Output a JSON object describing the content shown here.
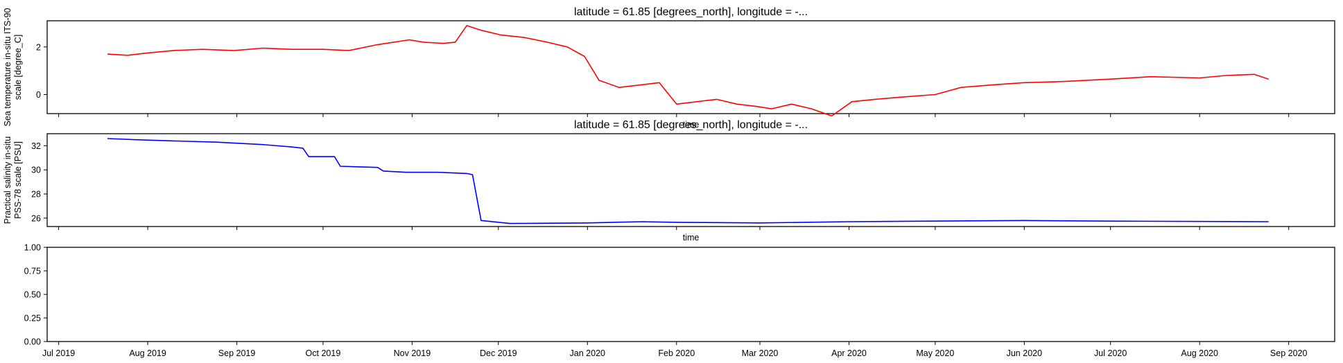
{
  "chart_data": [
    {
      "type": "line",
      "title": "latitude = 61.85 [degrees_north], longitude = -...",
      "ylabel_lines": [
        "Sea temperature in-situ ITS-90",
        "scale [degree_C]"
      ],
      "xlabel": "time",
      "ylim": [
        -0.8,
        3.1
      ],
      "yticks": [
        "0",
        "2"
      ],
      "color": "#ff0000",
      "grid": false,
      "series": [
        {
          "x": [
            "2019-07-18",
            "2019-07-25",
            "2019-08-01",
            "2019-08-10",
            "2019-08-20",
            "2019-08-31",
            "2019-09-10",
            "2019-09-20",
            "2019-10-01",
            "2019-10-10",
            "2019-10-20",
            "2019-10-31",
            "2019-11-05",
            "2019-11-12",
            "2019-11-16",
            "2019-11-20",
            "2019-11-25",
            "2019-12-02",
            "2019-12-10",
            "2019-12-18",
            "2019-12-25",
            "2019-12-31",
            "2020-01-05",
            "2020-01-12",
            "2020-01-19",
            "2020-01-26",
            "2020-02-01",
            "2020-02-08",
            "2020-02-15",
            "2020-02-22",
            "2020-02-29",
            "2020-03-05",
            "2020-03-12",
            "2020-03-19",
            "2020-03-26",
            "2020-04-02",
            "2020-04-10",
            "2020-04-20",
            "2020-05-01",
            "2020-05-10",
            "2020-05-20",
            "2020-06-01",
            "2020-06-15",
            "2020-07-01",
            "2020-07-15",
            "2020-08-01",
            "2020-08-10",
            "2020-08-20",
            "2020-08-25"
          ],
          "values": [
            1.7,
            1.65,
            1.75,
            1.85,
            1.9,
            1.85,
            1.95,
            1.9,
            1.9,
            1.85,
            2.1,
            2.3,
            2.2,
            2.15,
            2.2,
            2.9,
            2.7,
            2.5,
            2.4,
            2.2,
            2.0,
            1.6,
            0.6,
            0.3,
            0.4,
            0.5,
            -0.4,
            -0.3,
            -0.2,
            -0.4,
            -0.5,
            -0.6,
            -0.4,
            -0.6,
            -0.9,
            -0.3,
            -0.2,
            -0.1,
            0.0,
            0.3,
            0.4,
            0.5,
            0.55,
            0.65,
            0.75,
            0.7,
            0.8,
            0.85,
            0.65
          ]
        }
      ]
    },
    {
      "type": "line",
      "title": "latitude = 61.85 [degrees_north], longitude = -...",
      "ylabel_lines": [
        "Practical salinity in-situ",
        "PSS-78 scale [PSU]"
      ],
      "xlabel": "time",
      "ylim": [
        25.3,
        33.0
      ],
      "yticks": [
        "26",
        "28",
        "30",
        "32"
      ],
      "color": "#0000ff",
      "grid": false,
      "series": [
        {
          "x": [
            "2019-07-18",
            "2019-07-28",
            "2019-08-10",
            "2019-08-25",
            "2019-09-10",
            "2019-09-20",
            "2019-09-24",
            "2019-09-26",
            "2019-10-05",
            "2019-10-07",
            "2019-10-20",
            "2019-10-22",
            "2019-10-30",
            "2019-11-10",
            "2019-11-20",
            "2019-11-22",
            "2019-11-25",
            "2019-12-05",
            "2020-01-01",
            "2020-01-20",
            "2020-02-01",
            "2020-03-01",
            "2020-04-01",
            "2020-06-01",
            "2020-07-01",
            "2020-08-25"
          ],
          "values": [
            32.6,
            32.5,
            32.4,
            32.3,
            32.1,
            31.9,
            31.8,
            31.1,
            31.1,
            30.3,
            30.2,
            29.9,
            29.8,
            29.8,
            29.7,
            29.6,
            25.8,
            25.55,
            25.6,
            25.7,
            25.65,
            25.6,
            25.7,
            25.8,
            25.75,
            25.7
          ]
        }
      ]
    },
    {
      "type": "line",
      "title": "",
      "xlabel": "",
      "ylim": [
        0,
        1
      ],
      "yticks": [
        "0.00",
        "0.25",
        "0.50",
        "0.75",
        "1.00"
      ],
      "grid": false,
      "series": []
    }
  ],
  "shared_x": {
    "range": [
      "2019-06-27",
      "2020-09-17"
    ],
    "tick_dates": [
      "2019-07-01",
      "2019-08-01",
      "2019-09-01",
      "2019-10-01",
      "2019-11-01",
      "2019-12-01",
      "2020-01-01",
      "2020-02-01",
      "2020-03-01",
      "2020-04-01",
      "2020-05-01",
      "2020-06-01",
      "2020-07-01",
      "2020-08-01",
      "2020-09-01"
    ],
    "tick_labels": [
      "Jul 2019",
      "Aug 2019",
      "Sep 2019",
      "Oct 2019",
      "Nov 2019",
      "Dec 2019",
      "Jan 2020",
      "Feb 2020",
      "Mar 2020",
      "Apr 2020",
      "May 2020",
      "Jun 2020",
      "Jul 2020",
      "Aug 2020",
      "Sep 2020"
    ]
  }
}
